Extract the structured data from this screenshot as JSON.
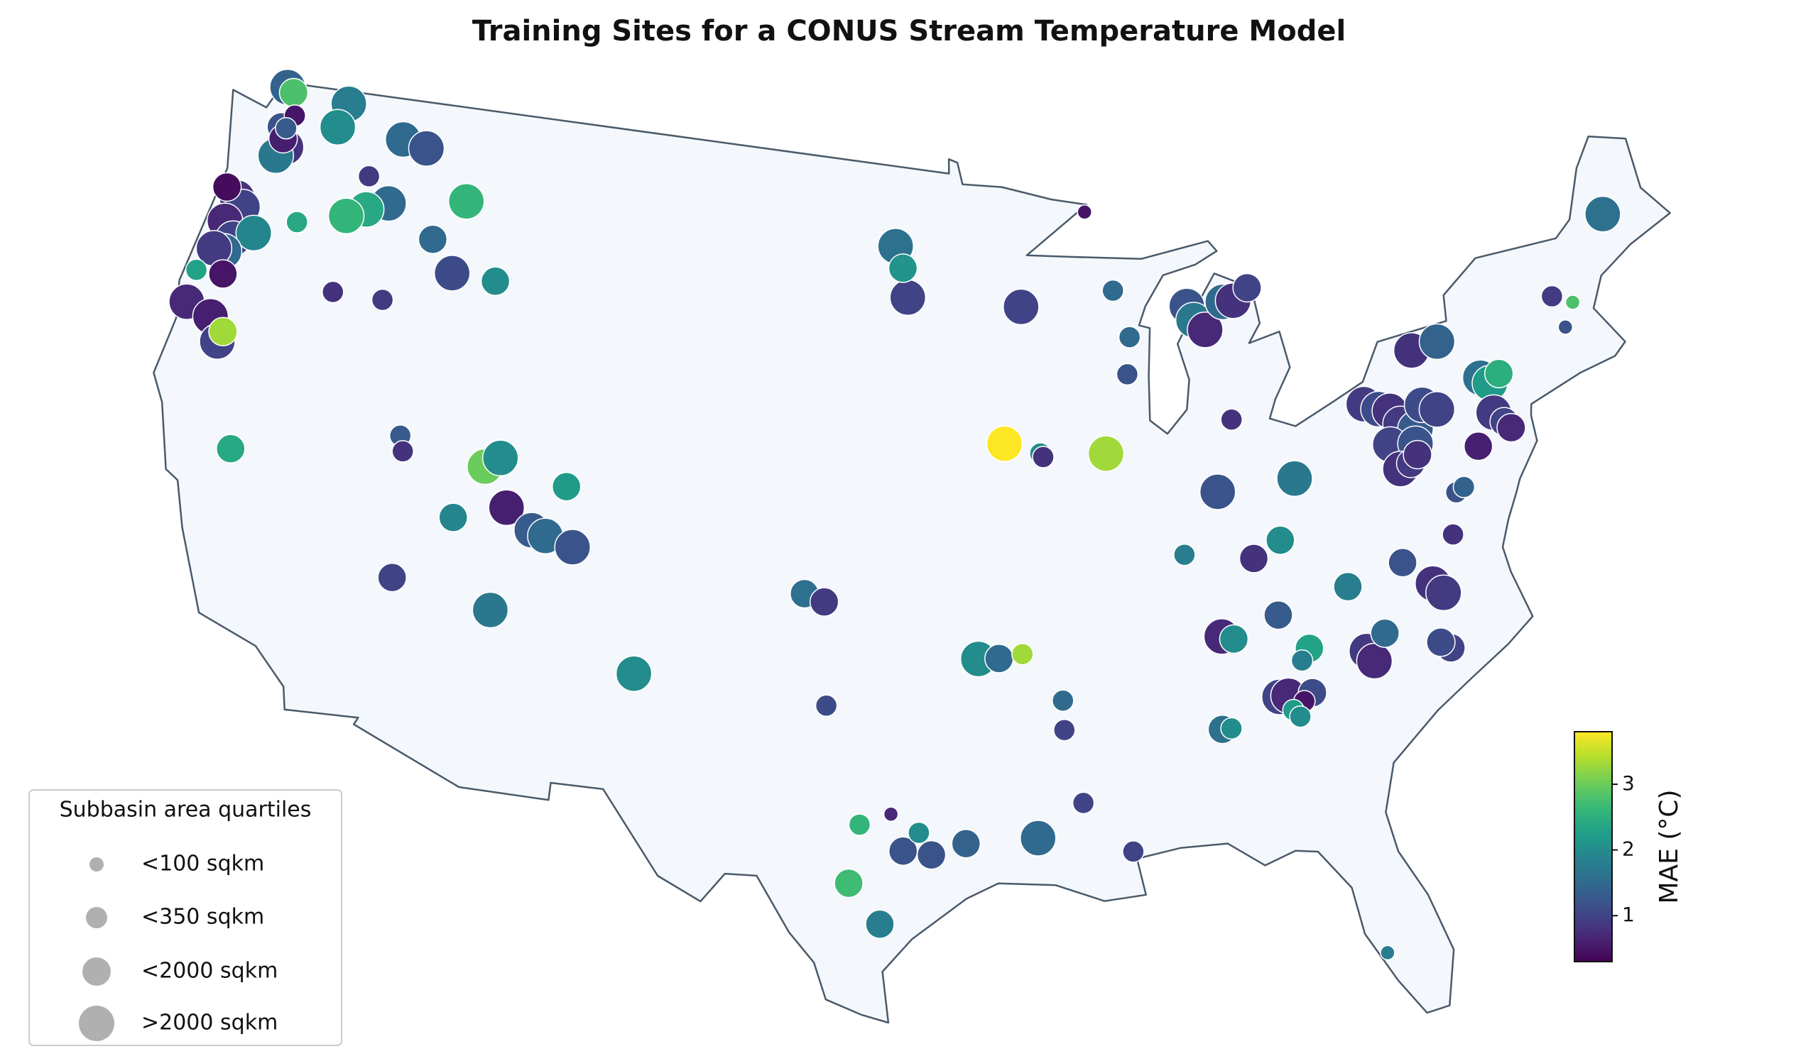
{
  "title": "Training Sites for a CONUS Stream Temperature Model",
  "sites": {
    "lon": [
      -122.6,
      -122.3,
      -122.4,
      -122.2,
      -122.0,
      -122.3,
      -122.0,
      -120.0,
      -120.2,
      -117.5,
      -116.5,
      -118.5,
      -117.5,
      -118.3,
      -119.0,
      -114.5,
      -115.5,
      -114.5,
      -112.8,
      -123.8,
      -123.3,
      -123.0,
      -123.5,
      -123.0,
      -122.3,
      -123.2,
      -123.6,
      -123.0,
      -124.0,
      -124.0,
      -123.0,
      -122.4,
      -122.5,
      -120.8,
      -118.8,
      -116.9,
      -121.0,
      -115.2,
      -115.0,
      -112.0,
      -111.5,
      -111.0,
      -110.0,
      -109.5,
      -108.5,
      -112.8,
      -109.0,
      -114.5,
      -111.0,
      -105.9,
      -100.3,
      -99.6,
      -99.4,
      -98.2,
      -97.2,
      -96.3,
      -96.8,
      -95.9,
      -98.5,
      -97.5,
      -94.8,
      -92.5,
      -91.0,
      -89.5,
      -94.3,
      -93.6,
      -92.8,
      -91.5,
      -91.5,
      -93.2,
      -91.9,
      -91.8,
      -89.5,
      -87.0,
      -83.6,
      -85.6,
      -84.8,
      -97.3,
      -97.0,
      -96.8,
      -89.7,
      -92.4,
      -88.8,
      -88.3,
      -88.5,
      -86.0,
      -85.8,
      -85.4,
      -84.6,
      -84.2,
      -83.6,
      -86.0,
      -85.6,
      -84.0,
      -83.1,
      -83.4,
      -84.3,
      -84.0,
      -83.5,
      -83.2,
      -83.9,
      -83.7,
      -86.3,
      -86.0,
      -81.2,
      -81.0,
      -80.5,
      -78.4,
      -78.7,
      -78.6,
      -78.3,
      -77.6,
      -79.5,
      -81.5,
      -79.9,
      -79.4,
      -79.0,
      -78.7,
      -78.2,
      -79.2,
      -78.3,
      -79.0,
      -78.6,
      -78.3,
      -77.8,
      -77.3,
      -77.8,
      -76.8,
      -75.5,
      -75.2,
      -74.8,
      -75.3,
      -75.0,
      -74.8,
      -76.1,
      -77.2,
      -76.9,
      -72.2,
      -71.5,
      -72.0,
      -69.5,
      -82.8,
      -84.6,
      -82.0,
      -122.2
    ],
    "lat": [
      48.9,
      48.8,
      47.8,
      47.5,
      47.3,
      47.0,
      48.2,
      48.9,
      48.2,
      48.3,
      48.2,
      47.1,
      46.5,
      46.2,
      45.9,
      47.0,
      45.8,
      45.0,
      45.0,
      45.8,
      45.6,
      45.4,
      44.9,
      44.5,
      44.8,
      44.1,
      44.1,
      43.5,
      43.4,
      42.5,
      42.3,
      42.0,
      41.7,
      45.4,
      43.8,
      43.9,
      39.0,
      40.4,
      40.0,
      40.0,
      40.3,
      39.0,
      38.5,
      38.4,
      38.2,
      38.5,
      39.8,
      36.6,
      36.2,
      35.0,
      37.5,
      37.3,
      34.5,
      31.3,
      31.6,
      31.1,
      30.6,
      30.5,
      29.7,
      28.6,
      30.8,
      30.9,
      31.8,
      30.4,
      35.8,
      35.8,
      35.9,
      34.6,
      33.8,
      41.6,
      41.3,
      41.2,
      41.2,
      38.3,
      38.4,
      39.9,
      41.8,
      47.0,
      46.4,
      45.6,
      47.8,
      45.3,
      45.6,
      44.3,
      43.3,
      45.0,
      44.6,
      44.3,
      45.0,
      45.0,
      45.3,
      36.0,
      35.9,
      36.4,
      35.4,
      35.1,
      34.2,
      34.2,
      34.0,
      34.2,
      33.8,
      33.6,
      33.5,
      33.5,
      35.1,
      34.8,
      35.5,
      34.8,
      35.0,
      36.6,
      36.3,
      37.8,
      37.3,
      36.9,
      41.7,
      41.5,
      41.4,
      41.0,
      40.8,
      40.5,
      40.4,
      39.8,
      39.9,
      40.1,
      41.4,
      41.2,
      42.9,
      43.0,
      41.8,
      41.6,
      41.8,
      40.8,
      40.5,
      40.3,
      40.0,
      38.9,
      39.0,
      43.5,
      43.2,
      42.6,
      45.3,
      40.0,
      38.0,
      26.9,
      47.8
    ],
    "mae": [
      1.4,
      2.8,
      1.2,
      0.6,
      0.8,
      1.7,
      0.5,
      1.8,
      2.0,
      1.5,
      1.2,
      0.9,
      1.5,
      2.4,
      2.6,
      2.6,
      1.5,
      1.1,
      2.0,
      0.4,
      0.8,
      1.0,
      0.7,
      1.0,
      1.9,
      1.5,
      0.9,
      0.5,
      2.3,
      0.7,
      0.6,
      3.3,
      1.0,
      2.4,
      0.8,
      0.9,
      2.4,
      1.3,
      0.8,
      3.0,
      2.0,
      0.6,
      1.3,
      1.5,
      1.2,
      1.9,
      2.2,
      1.0,
      1.7,
      2.0,
      1.6,
      0.9,
      1.1,
      2.6,
      0.7,
      2.0,
      1.2,
      1.2,
      2.7,
      1.8,
      1.4,
      1.5,
      1.0,
      1.0,
      2.0,
      1.5,
      3.3,
      1.5,
      1.0,
      3.8,
      2.0,
      0.8,
      3.3,
      1.8,
      2.0,
      1.2,
      0.8,
      1.6,
      2.1,
      1.0,
      0.5,
      1.0,
      1.5,
      1.5,
      1.2,
      1.2,
      1.7,
      0.7,
      1.5,
      0.8,
      1.0,
      0.7,
      2.0,
      1.3,
      2.3,
      1.8,
      1.0,
      0.7,
      0.5,
      1.1,
      2.2,
      2.0,
      1.6,
      2.0,
      0.9,
      0.7,
      1.5,
      1.0,
      1.1,
      0.8,
      0.9,
      0.8,
      1.2,
      1.8,
      0.9,
      1.1,
      0.8,
      0.9,
      1.3,
      1.0,
      1.2,
      0.8,
      0.9,
      0.8,
      1.1,
      1.0,
      0.8,
      1.4,
      1.6,
      2.2,
      2.5,
      0.9,
      1.0,
      0.7,
      0.6,
      1.2,
      1.4,
      0.9,
      2.8,
      1.2,
      1.6,
      1.7,
      0.8,
      1.8,
      1.3
    ],
    "area_quartile": [
      4,
      3,
      3,
      3,
      4,
      4,
      2,
      4,
      4,
      4,
      4,
      2,
      4,
      4,
      4,
      4,
      3,
      4,
      3,
      3,
      4,
      4,
      4,
      4,
      4,
      4,
      4,
      3,
      2,
      4,
      4,
      3,
      4,
      2,
      2,
      2,
      3,
      2,
      2,
      4,
      4,
      4,
      4,
      4,
      4,
      3,
      3,
      3,
      4,
      4,
      3,
      3,
      2,
      2,
      1,
      2,
      3,
      3,
      3,
      3,
      3,
      4,
      2,
      2,
      4,
      3,
      2,
      2,
      2,
      4,
      2,
      2,
      4,
      2,
      3,
      4,
      2,
      4,
      3,
      4,
      1,
      4,
      2,
      2,
      2,
      4,
      4,
      4,
      4,
      4,
      3,
      4,
      3,
      3,
      3,
      2,
      4,
      4,
      2,
      3,
      2,
      2,
      3,
      2,
      4,
      4,
      3,
      3,
      3,
      4,
      4,
      2,
      3,
      3,
      4,
      4,
      4,
      4,
      4,
      4,
      4,
      4,
      3,
      3,
      4,
      4,
      4,
      4,
      4,
      4,
      3,
      4,
      3,
      3,
      3,
      2,
      2,
      2,
      1,
      1,
      4,
      4,
      3,
      1,
      2
    ]
  },
  "colorbar": {
    "label": "MAE (°C)",
    "lim": [
      0.3,
      3.8
    ],
    "ticks": [
      1,
      2,
      3
    ],
    "colormap": "viridis"
  },
  "legend": {
    "title": "Subbasin area quartiles",
    "labels": [
      "<100 sqkm",
      "<350 sqkm",
      "<2000 sqkm",
      ">2000 sqkm"
    ]
  }
}
